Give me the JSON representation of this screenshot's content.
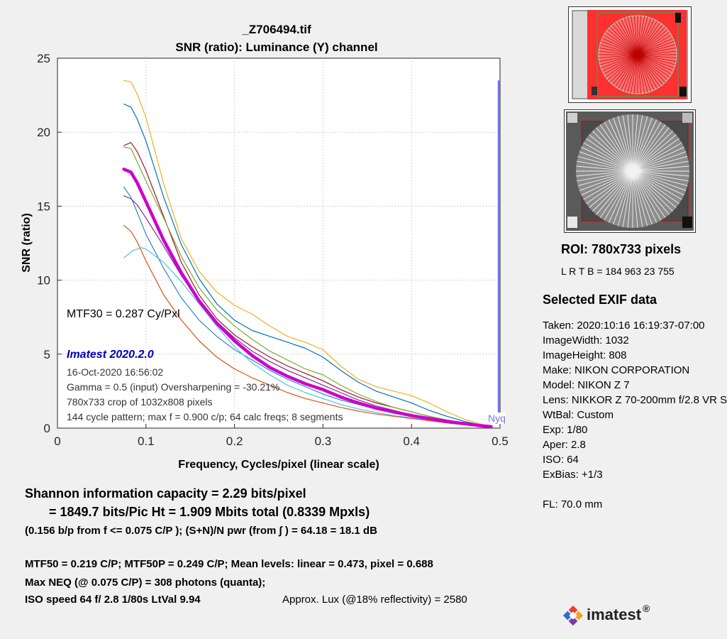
{
  "chart_data": {
    "type": "line",
    "title": "_Z706494.tif",
    "subtitle": "SNR (ratio):  Luminance (Y) channel",
    "xlabel": "Frequency, Cycles/pixel (linear scale)",
    "ylabel": "SNR (ratio)",
    "xlim": [
      0,
      0.5
    ],
    "ylim": [
      0,
      25
    ],
    "xticks": [
      "0",
      "0.1",
      "0.2",
      "0.3",
      "0.4",
      "0.5"
    ],
    "yticks": [
      "0",
      "5",
      "10",
      "15",
      "20",
      "25"
    ],
    "grid": true,
    "nyquist_label": "Nyq",
    "nyquist_x": 0.5,
    "series": [
      {
        "color": "#edb120",
        "width": 1.2,
        "points": [
          [
            0.075,
            23.5
          ],
          [
            0.083,
            23.4
          ],
          [
            0.09,
            22.6
          ],
          [
            0.1,
            21.0
          ],
          [
            0.12,
            16.5
          ],
          [
            0.14,
            12.8
          ],
          [
            0.16,
            10.6
          ],
          [
            0.18,
            9.2
          ],
          [
            0.2,
            8.3
          ],
          [
            0.22,
            7.7
          ],
          [
            0.24,
            6.9
          ],
          [
            0.26,
            6.2
          ],
          [
            0.28,
            5.8
          ],
          [
            0.3,
            5.3
          ],
          [
            0.32,
            4.2
          ],
          [
            0.34,
            3.3
          ],
          [
            0.36,
            2.8
          ],
          [
            0.38,
            2.5
          ],
          [
            0.4,
            2.2
          ],
          [
            0.42,
            1.7
          ],
          [
            0.44,
            1.1
          ],
          [
            0.46,
            0.6
          ],
          [
            0.48,
            0.25
          ],
          [
            0.49,
            0.15
          ]
        ]
      },
      {
        "color": "#0072bd",
        "width": 1.2,
        "points": [
          [
            0.075,
            21.9
          ],
          [
            0.083,
            21.7
          ],
          [
            0.09,
            20.9
          ],
          [
            0.1,
            19.4
          ],
          [
            0.12,
            15.6
          ],
          [
            0.14,
            12.4
          ],
          [
            0.16,
            10.1
          ],
          [
            0.18,
            8.4
          ],
          [
            0.2,
            7.3
          ],
          [
            0.22,
            6.6
          ],
          [
            0.24,
            6.2
          ],
          [
            0.26,
            5.8
          ],
          [
            0.28,
            5.4
          ],
          [
            0.3,
            4.8
          ],
          [
            0.32,
            3.9
          ],
          [
            0.34,
            3.1
          ],
          [
            0.36,
            2.5
          ],
          [
            0.38,
            2.1
          ],
          [
            0.4,
            1.7
          ],
          [
            0.42,
            1.2
          ],
          [
            0.44,
            0.8
          ],
          [
            0.46,
            0.45
          ],
          [
            0.48,
            0.2
          ],
          [
            0.49,
            0.1
          ]
        ]
      },
      {
        "color": "#a2142f",
        "width": 1.2,
        "points": [
          [
            0.075,
            19.1
          ],
          [
            0.083,
            19.3
          ],
          [
            0.09,
            18.7
          ],
          [
            0.1,
            17.4
          ],
          [
            0.12,
            14.3
          ],
          [
            0.14,
            11.2
          ],
          [
            0.16,
            9.0
          ],
          [
            0.18,
            7.4
          ],
          [
            0.2,
            6.3
          ],
          [
            0.22,
            5.5
          ],
          [
            0.24,
            4.8
          ],
          [
            0.26,
            4.2
          ],
          [
            0.28,
            3.7
          ],
          [
            0.3,
            3.2
          ],
          [
            0.32,
            2.6
          ],
          [
            0.34,
            2.1
          ],
          [
            0.36,
            1.7
          ],
          [
            0.38,
            1.4
          ],
          [
            0.4,
            1.1
          ],
          [
            0.42,
            0.8
          ],
          [
            0.44,
            0.55
          ],
          [
            0.46,
            0.35
          ],
          [
            0.48,
            0.15
          ],
          [
            0.49,
            0.1
          ]
        ]
      },
      {
        "color": "#77ac30",
        "width": 1.2,
        "points": [
          [
            0.075,
            19.0
          ],
          [
            0.083,
            18.9
          ],
          [
            0.09,
            18.0
          ],
          [
            0.1,
            16.7
          ],
          [
            0.12,
            14.2
          ],
          [
            0.14,
            11.6
          ],
          [
            0.16,
            9.5
          ],
          [
            0.18,
            8.0
          ],
          [
            0.2,
            6.9
          ],
          [
            0.22,
            6.0
          ],
          [
            0.24,
            5.2
          ],
          [
            0.26,
            4.6
          ],
          [
            0.28,
            4.0
          ],
          [
            0.3,
            3.6
          ],
          [
            0.32,
            2.9
          ],
          [
            0.34,
            2.3
          ],
          [
            0.36,
            1.8
          ],
          [
            0.38,
            1.4
          ],
          [
            0.4,
            1.1
          ],
          [
            0.42,
            0.8
          ],
          [
            0.44,
            0.55
          ],
          [
            0.46,
            0.35
          ],
          [
            0.48,
            0.15
          ],
          [
            0.49,
            0.1
          ]
        ]
      },
      {
        "color": "#7e2f8e",
        "width": 1.2,
        "points": [
          [
            0.075,
            15.7
          ],
          [
            0.083,
            15.5
          ],
          [
            0.09,
            15.1
          ],
          [
            0.1,
            14.2
          ],
          [
            0.12,
            12.3
          ],
          [
            0.14,
            10.3
          ],
          [
            0.16,
            8.6
          ],
          [
            0.18,
            7.2
          ],
          [
            0.2,
            6.1
          ],
          [
            0.22,
            5.2
          ],
          [
            0.24,
            4.5
          ],
          [
            0.26,
            3.9
          ],
          [
            0.28,
            3.4
          ],
          [
            0.3,
            2.9
          ],
          [
            0.32,
            2.4
          ],
          [
            0.34,
            1.9
          ],
          [
            0.36,
            1.5
          ],
          [
            0.38,
            1.2
          ],
          [
            0.4,
            0.9
          ],
          [
            0.42,
            0.7
          ],
          [
            0.44,
            0.5
          ],
          [
            0.46,
            0.3
          ],
          [
            0.48,
            0.15
          ],
          [
            0.49,
            0.1
          ]
        ]
      },
      {
        "color": "#0072bd",
        "width": 1.0,
        "points": [
          [
            0.075,
            16.3
          ],
          [
            0.083,
            15.6
          ],
          [
            0.09,
            14.6
          ],
          [
            0.1,
            13.1
          ],
          [
            0.12,
            10.8
          ],
          [
            0.14,
            8.8
          ],
          [
            0.16,
            7.3
          ],
          [
            0.18,
            6.2
          ],
          [
            0.2,
            5.3
          ],
          [
            0.22,
            4.6
          ],
          [
            0.24,
            3.9
          ],
          [
            0.26,
            3.3
          ],
          [
            0.28,
            2.8
          ],
          [
            0.3,
            2.3
          ],
          [
            0.32,
            1.9
          ],
          [
            0.34,
            1.6
          ],
          [
            0.36,
            1.3
          ],
          [
            0.38,
            1.0
          ],
          [
            0.4,
            0.8
          ],
          [
            0.42,
            0.6
          ],
          [
            0.44,
            0.4
          ],
          [
            0.46,
            0.25
          ],
          [
            0.48,
            0.12
          ],
          [
            0.49,
            0.08
          ]
        ]
      },
      {
        "color": "#4dbeee",
        "width": 1.2,
        "points": [
          [
            0.075,
            11.5
          ],
          [
            0.085,
            12.0
          ],
          [
            0.095,
            12.2
          ],
          [
            0.1,
            12.1
          ],
          [
            0.12,
            11.2
          ],
          [
            0.14,
            9.9
          ],
          [
            0.16,
            8.4
          ],
          [
            0.18,
            6.9
          ],
          [
            0.2,
            5.5
          ],
          [
            0.22,
            4.4
          ],
          [
            0.24,
            3.6
          ],
          [
            0.26,
            2.9
          ],
          [
            0.28,
            2.4
          ],
          [
            0.3,
            2.0
          ],
          [
            0.32,
            1.6
          ],
          [
            0.34,
            1.3
          ],
          [
            0.36,
            1.05
          ],
          [
            0.38,
            0.85
          ],
          [
            0.4,
            0.7
          ],
          [
            0.42,
            0.55
          ],
          [
            0.44,
            0.4
          ],
          [
            0.46,
            0.25
          ],
          [
            0.48,
            0.12
          ],
          [
            0.49,
            0.08
          ]
        ]
      },
      {
        "color": "#d95319",
        "width": 1.2,
        "points": [
          [
            0.075,
            13.7
          ],
          [
            0.083,
            13.3
          ],
          [
            0.09,
            12.6
          ],
          [
            0.1,
            11.3
          ],
          [
            0.12,
            9.0
          ],
          [
            0.14,
            7.3
          ],
          [
            0.16,
            5.9
          ],
          [
            0.18,
            4.8
          ],
          [
            0.2,
            4.0
          ],
          [
            0.22,
            3.4
          ],
          [
            0.24,
            2.9
          ],
          [
            0.26,
            2.4
          ],
          [
            0.28,
            2.0
          ],
          [
            0.3,
            1.7
          ],
          [
            0.32,
            1.4
          ],
          [
            0.34,
            1.15
          ],
          [
            0.36,
            0.95
          ],
          [
            0.38,
            0.8
          ],
          [
            0.4,
            0.65
          ],
          [
            0.42,
            0.5
          ],
          [
            0.44,
            0.35
          ],
          [
            0.46,
            0.22
          ],
          [
            0.48,
            0.1
          ],
          [
            0.49,
            0.06
          ]
        ]
      },
      {
        "color": "#cc00cc",
        "width": 4.5,
        "points": [
          [
            0.075,
            17.5
          ],
          [
            0.083,
            17.3
          ],
          [
            0.09,
            16.6
          ],
          [
            0.1,
            15.3
          ],
          [
            0.12,
            12.7
          ],
          [
            0.14,
            10.5
          ],
          [
            0.16,
            8.6
          ],
          [
            0.18,
            7.1
          ],
          [
            0.2,
            5.9
          ],
          [
            0.22,
            4.9
          ],
          [
            0.24,
            4.1
          ],
          [
            0.26,
            3.5
          ],
          [
            0.28,
            3.0
          ],
          [
            0.3,
            2.6
          ],
          [
            0.32,
            2.1
          ],
          [
            0.34,
            1.7
          ],
          [
            0.36,
            1.35
          ],
          [
            0.38,
            1.1
          ],
          [
            0.4,
            0.85
          ],
          [
            0.42,
            0.65
          ],
          [
            0.44,
            0.45
          ],
          [
            0.46,
            0.3
          ],
          [
            0.48,
            0.15
          ],
          [
            0.49,
            0.1
          ]
        ]
      }
    ],
    "annotations": {
      "mtf30": "MTF30 = 0.287 Cy/Pxl",
      "version": "Imatest 2020.2.0",
      "date": "16-Oct-2020 16:56:02",
      "gamma": "Gamma = 0.5 (input)  Oversharpening = -30.21%",
      "crop": "780x733 crop of 1032x808 pixels",
      "pattern": "144 cycle pattern; max f = 0.900 c/p;  64 calc freqs;  8 segments"
    }
  },
  "roi": {
    "title": "ROI:  780x733 pixels",
    "lrtb": "L R  T B = 184 963  23 755"
  },
  "exif": {
    "heading": "Selected EXIF data",
    "lines": [
      "Taken: 2020:10:16 16:19:37-07:00",
      "ImageWidth:  1032",
      "ImageHeight:  808",
      "Make:  NIKON CORPORATION",
      "Model: NIKON Z 7",
      "Lens:  NIKKOR Z 70-200mm f/2.8 VR S",
      "WtBal:  Custom",
      "Exp:   1/80",
      "Aper:  2.8",
      "ISO:   64",
      "ExBias:  +1/3",
      "",
      "FL:  70.0 mm"
    ]
  },
  "summary": {
    "shannon1": "Shannon information capacity  =  2.29 bits/pixel",
    "shannon2": "=  1849.7 bits/Pic Ht =  1.909 Mbits total (0.8339 Mpxls)",
    "shannon3": "(0.156 b/p from f <= 0.075 C/P );   (S+N)/N pwr (from ∫ ) = 64.18 = 18.1 dB",
    "mtf": "MTF50 = 0.219 C/P;  MTF50P = 0.249 C/P;    Mean levels:  linear = 0.473,  pixel = 0.688",
    "neq": "Max NEQ (@ 0.075 C/P) = 308 photons (quanta);",
    "iso": "ISO speed  64   f/ 2.8    1/80s    LtVal 9.94",
    "lux": "Approx. Lux (@18% reflectivity) = 2580"
  },
  "logo": {
    "text": "imatest",
    "mark": "®"
  }
}
